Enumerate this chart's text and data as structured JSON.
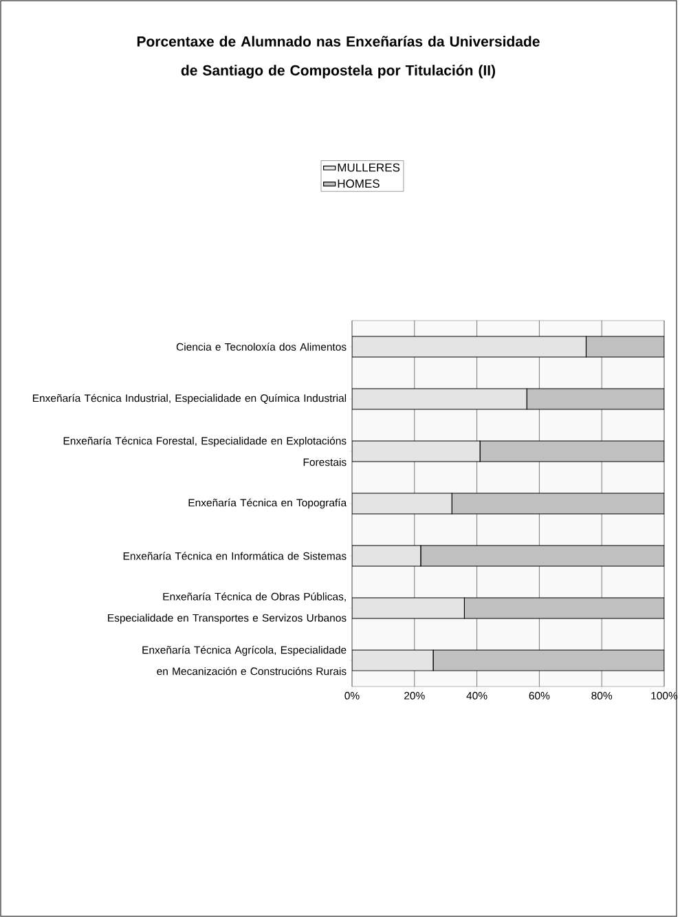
{
  "chart_data": {
    "type": "bar",
    "orientation": "horizontal",
    "stacked": true,
    "title": "Porcentaxe de Alumnado nas Enxeñarías da Universidade de Santiago de Compostela por Titulación (II)",
    "categories": [
      "Ciencia e Tecnoloxía dos Alimentos",
      "Enxeñaría Técnica Industrial, Especialidade en Química Industrial",
      "Enxeñaría Técnica Forestal, Especialidade en Explotacións Forestais",
      "Enxeñaría Técnica en Topografía",
      "Enxeñaría Técnica en Informática de Sistemas",
      "Enxeñaría Técnica de Obras Públicas, Especialidade en Transportes e Servizos Urbanos",
      "Enxeñaría Técnica Agrícola, Especialidade en Mecanización e Construcións Rurais"
    ],
    "series": [
      {
        "name": "MULLERES",
        "color": "#e4e4e4",
        "values": [
          75,
          56,
          41,
          32,
          22,
          36,
          26
        ]
      },
      {
        "name": "HOMES",
        "color": "#c0c0c0",
        "values": [
          25,
          44,
          59,
          68,
          78,
          64,
          74
        ]
      }
    ],
    "xlim": [
      0,
      100
    ],
    "xticks": [
      {
        "value": 0,
        "label": "0%"
      },
      {
        "value": 20,
        "label": "20%"
      },
      {
        "value": 40,
        "label": "40%"
      },
      {
        "value": 60,
        "label": "60%"
      },
      {
        "value": 80,
        "label": "80%"
      },
      {
        "value": 100,
        "label": "100%"
      }
    ],
    "grid": "x",
    "legend": "top"
  }
}
